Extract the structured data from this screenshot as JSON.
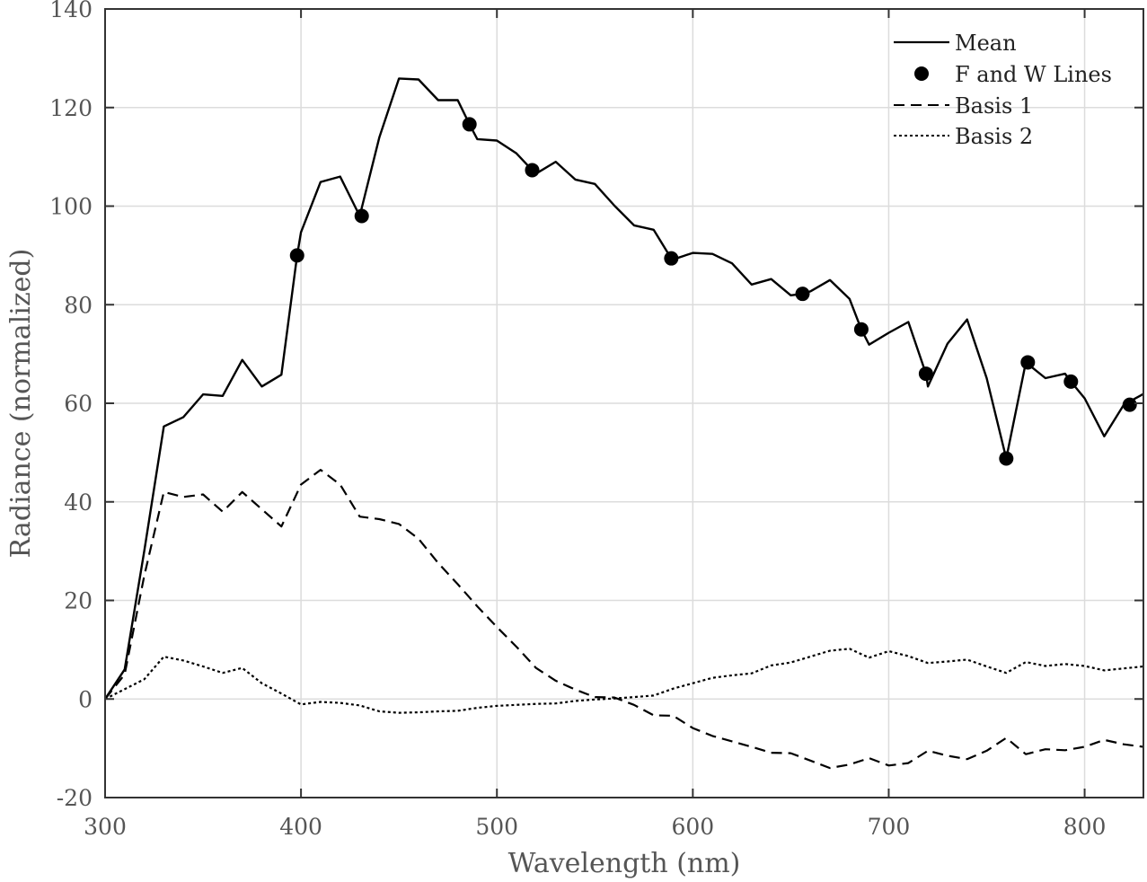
{
  "chart_data": {
    "type": "line",
    "xlabel": "Wavelength (nm)",
    "ylabel": "Radiance (normalized)",
    "xlim": [
      300,
      830
    ],
    "ylim": [
      -20,
      140
    ],
    "xticks": [
      300,
      400,
      500,
      600,
      700,
      800
    ],
    "yticks": [
      -20,
      0,
      20,
      40,
      60,
      80,
      100,
      120,
      140
    ],
    "grid": true,
    "legend_position": "top-right",
    "series": [
      {
        "name": "Mean",
        "style": "solid",
        "color": "#000000",
        "x": [
          300,
          310,
          320,
          330,
          340,
          350,
          360,
          370,
          380,
          390,
          398,
          400,
          410,
          420,
          430,
          440,
          450,
          460,
          470,
          480,
          486,
          490,
          500,
          510,
          518,
          520,
          530,
          540,
          550,
          560,
          570,
          580,
          589,
          590,
          600,
          610,
          620,
          630,
          640,
          650,
          656,
          660,
          670,
          680,
          686,
          690,
          700,
          710,
          719,
          720,
          730,
          740,
          750,
          760,
          770,
          780,
          790,
          793,
          800,
          810,
          820,
          830
        ],
        "y": [
          0,
          6,
          30,
          55.3,
          57.2,
          61.8,
          61.5,
          68.8,
          63.4,
          65.8,
          90,
          94.7,
          104.9,
          106,
          98,
          114,
          125.9,
          125.7,
          121.5,
          121.5,
          116.6,
          113.6,
          113.3,
          110.7,
          107.3,
          106.6,
          109,
          105.4,
          104.5,
          100.1,
          96.1,
          95.2,
          89.4,
          89.2,
          90.5,
          90.3,
          88.4,
          84.1,
          85.2,
          81.9,
          82.2,
          82.7,
          85,
          81.2,
          75,
          71.9,
          74.3,
          76.5,
          66,
          63.4,
          72.1,
          77,
          65.1,
          48.8,
          68.3,
          65.1,
          66,
          64.4,
          61,
          53.3,
          59.7,
          61.9
        ]
      },
      {
        "name": "F and W Lines",
        "style": "markers",
        "color": "#000000",
        "x": [
          398,
          431,
          486,
          518,
          589,
          656,
          686,
          719,
          760,
          771,
          793,
          823
        ],
        "y": [
          90,
          98,
          116.6,
          107.3,
          89.4,
          82.2,
          75,
          66,
          48.8,
          68.3,
          64.4,
          59.7
        ]
      },
      {
        "name": "Basis 1",
        "style": "dashed",
        "color": "#000000",
        "x": [
          300,
          310,
          320,
          330,
          340,
          350,
          360,
          370,
          380,
          390,
          400,
          410,
          420,
          430,
          440,
          450,
          460,
          470,
          480,
          490,
          500,
          510,
          520,
          530,
          540,
          550,
          560,
          570,
          580,
          590,
          600,
          610,
          620,
          630,
          640,
          650,
          660,
          670,
          680,
          690,
          700,
          710,
          720,
          730,
          740,
          750,
          760,
          770,
          780,
          790,
          800,
          810,
          820,
          830
        ],
        "y": [
          0,
          5,
          25,
          42,
          41,
          41.5,
          38,
          42,
          38.5,
          35,
          43.5,
          46.5,
          43.5,
          37,
          36.5,
          35.5,
          32.5,
          27.6,
          23.3,
          18.8,
          14.6,
          10.6,
          6.3,
          3.7,
          1.9,
          0.4,
          0.3,
          -1.2,
          -3.3,
          -3.4,
          -5.9,
          -7.5,
          -8.6,
          -9.7,
          -10.9,
          -11,
          -12.5,
          -14,
          -13.3,
          -12,
          -13.5,
          -13,
          -10.5,
          -11.5,
          -12.2,
          -10.5,
          -7.9,
          -11.2,
          -10.2,
          -10.4,
          -9.7,
          -8.3,
          -9.2,
          -9.7
        ]
      },
      {
        "name": "Basis 2",
        "style": "dotted",
        "color": "#000000",
        "x": [
          300,
          310,
          320,
          330,
          340,
          350,
          360,
          370,
          380,
          390,
          400,
          410,
          420,
          430,
          440,
          450,
          460,
          470,
          480,
          490,
          500,
          510,
          520,
          530,
          540,
          550,
          560,
          570,
          580,
          590,
          600,
          610,
          620,
          630,
          640,
          650,
          660,
          670,
          680,
          690,
          700,
          710,
          720,
          730,
          740,
          750,
          760,
          770,
          780,
          790,
          800,
          810,
          820,
          830
        ],
        "y": [
          0,
          2,
          4,
          8.6,
          7.8,
          6.6,
          5.3,
          6.3,
          3.2,
          1.1,
          -1.1,
          -0.6,
          -0.8,
          -1.3,
          -2.5,
          -2.8,
          -2.7,
          -2.5,
          -2.4,
          -1.8,
          -1.4,
          -1.2,
          -1,
          -0.9,
          -0.4,
          -0.1,
          0.1,
          0.4,
          0.7,
          2.1,
          3.2,
          4.3,
          4.8,
          5.2,
          6.8,
          7.4,
          8.6,
          9.8,
          10.2,
          8.4,
          9.7,
          8.7,
          7.3,
          7.6,
          8,
          6.6,
          5.3,
          7.5,
          6.7,
          7.1,
          6.7,
          5.8,
          6.2,
          6.6
        ]
      }
    ]
  }
}
